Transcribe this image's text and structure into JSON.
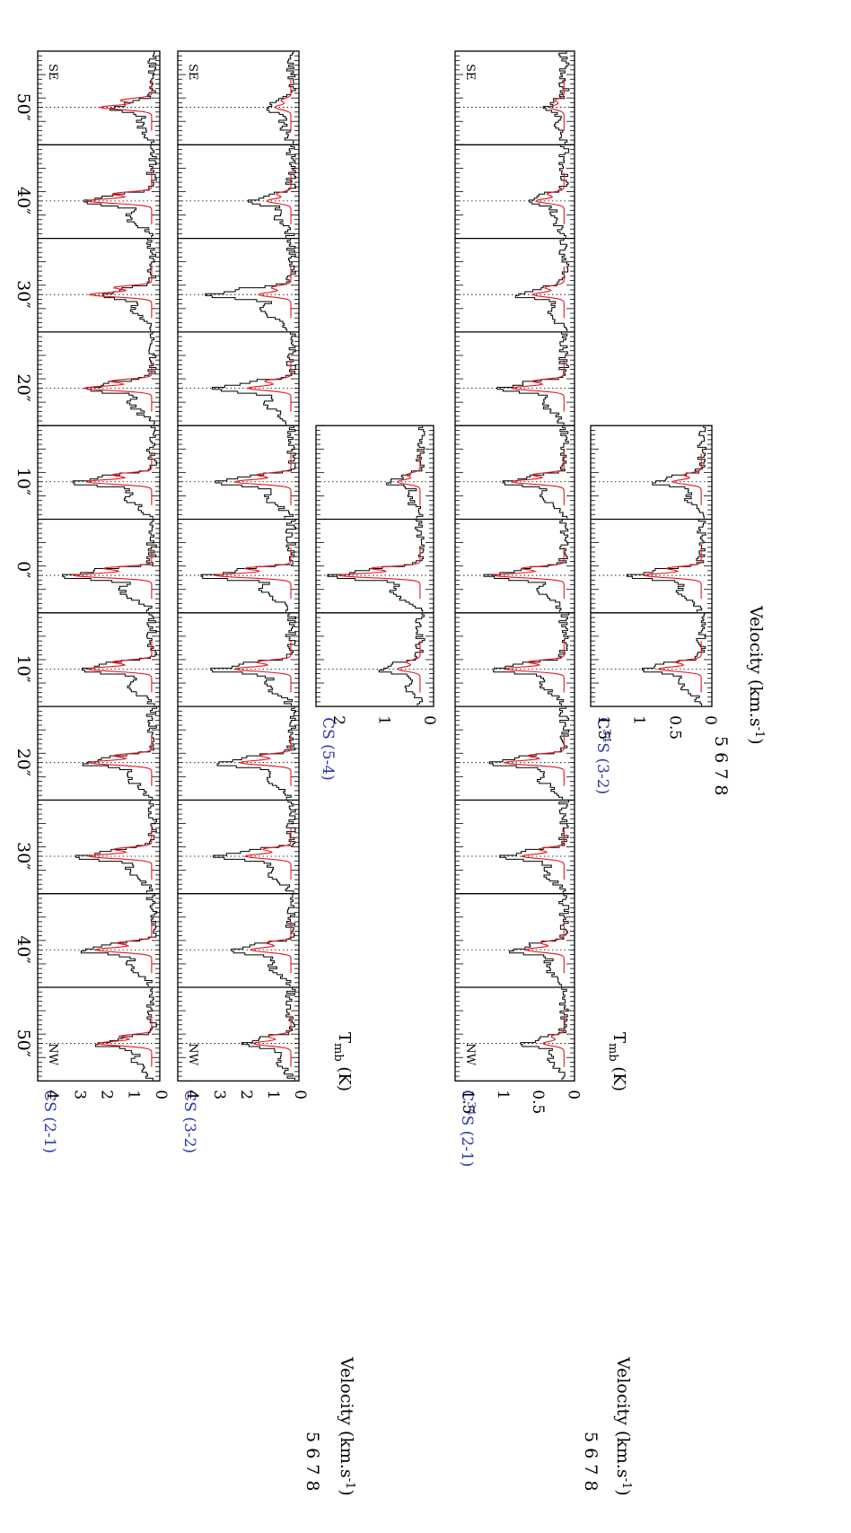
{
  "figure": {
    "position_labels": [
      "50″",
      "40″",
      "30″",
      "20″",
      "10″",
      "0″",
      "10″",
      "20″",
      "30″",
      "40″",
      "50″"
    ],
    "orientation_labels": {
      "left": "SE",
      "right": "NW"
    },
    "ylabel": "T",
    "ylabel_sub": "mb",
    "ylabel_unit": "(K)",
    "xlabel": "Velocity (km.s",
    "xlabel_sup": "-1",
    "xlabel_close": ")",
    "velocity_ticks": [
      "5",
      "6",
      "7",
      "8"
    ],
    "colors": {
      "observed": "#000000",
      "model": "#e8141c",
      "line_label": "#2b35a8",
      "axis": "#000000"
    }
  },
  "chart_data": [
    {
      "type": "line",
      "title": "CS (2-1)",
      "positions": [
        "50″",
        "40″",
        "30″",
        "20″",
        "10″",
        "0″",
        "10″",
        "20″",
        "30″",
        "40″",
        "50″"
      ],
      "ylabel": "Tmb (K)",
      "yticks": [
        0,
        1,
        2,
        3,
        4
      ],
      "ylim": [
        -0.3,
        4.2
      ],
      "series": [
        {
          "name": "observed",
          "peak_values": [
            1.3,
            2.4,
            1.8,
            2.2,
            2.6,
            3.0,
            2.4,
            2.3,
            2.4,
            2.3,
            1.8
          ]
        },
        {
          "name": "model",
          "peak_values": [
            1.9,
            2.4,
            2.3,
            2.5,
            2.4,
            2.9,
            2.4,
            2.3,
            2.3,
            2.1,
            2.0
          ]
        }
      ]
    },
    {
      "type": "line",
      "title": "CS (3-2)",
      "positions": [
        "50″",
        "40″",
        "30″",
        "20″",
        "10″",
        "0″",
        "10″",
        "20″",
        "30″",
        "40″",
        "50″"
      ],
      "ylabel": "Tmb (K)",
      "yticks": [
        0,
        1,
        2,
        3,
        4
      ],
      "ylim": [
        -0.3,
        4.2
      ],
      "series": [
        {
          "name": "observed",
          "peak_values": [
            0.9,
            1.3,
            2.8,
            2.6,
            2.6,
            3.0,
            2.6,
            2.5,
            2.5,
            2.1,
            1.6
          ]
        },
        {
          "name": "model",
          "peak_values": [
            0.6,
            0.9,
            1.2,
            1.6,
            2.1,
            2.8,
            2.1,
            1.9,
            1.7,
            1.5,
            1.4
          ]
        }
      ]
    },
    {
      "type": "line",
      "title": "CS (5-4)",
      "positions": [
        "10″",
        "0″",
        "10″"
      ],
      "ylabel": "Tmb (K)",
      "yticks": [
        0,
        1,
        2
      ],
      "ylim": [
        -0.3,
        2.3
      ],
      "series": [
        {
          "name": "observed",
          "peak_values": [
            0.6,
            1.8,
            0.8
          ]
        },
        {
          "name": "model",
          "peak_values": [
            0.5,
            1.8,
            0.5
          ]
        }
      ]
    },
    {
      "type": "line",
      "title": "C34S (2-1)",
      "positions": [
        "50″",
        "40″",
        "30″",
        "20″",
        "10″",
        "0″",
        "10″",
        "20″",
        "30″",
        "40″",
        "50″"
      ],
      "ylabel": "Tmb (K)",
      "yticks": [
        0,
        0.5,
        1,
        1.5
      ],
      "ylim": [
        -0.15,
        1.55
      ],
      "series": [
        {
          "name": "observed",
          "peak_values": [
            0.25,
            0.5,
            0.6,
            0.85,
            0.8,
            1.0,
            0.9,
            1.0,
            0.8,
            0.7,
            0.5
          ]
        },
        {
          "name": "model",
          "peak_values": [
            0.2,
            0.4,
            0.45,
            0.75,
            0.75,
            1.0,
            0.85,
            0.85,
            0.6,
            0.55,
            0.3
          ]
        }
      ]
    },
    {
      "type": "line",
      "title": "C34S (3-2)",
      "positions": [
        "10″",
        "0″",
        "10″"
      ],
      "ylabel": "Tmb (K)",
      "yticks": [
        0,
        0.5,
        1,
        1.5
      ],
      "ylim": [
        -0.15,
        1.55
      ],
      "series": [
        {
          "name": "observed",
          "peak_values": [
            0.6,
            0.9,
            0.8
          ]
        },
        {
          "name": "model",
          "peak_values": [
            0.4,
            0.8,
            0.6
          ]
        }
      ]
    }
  ]
}
